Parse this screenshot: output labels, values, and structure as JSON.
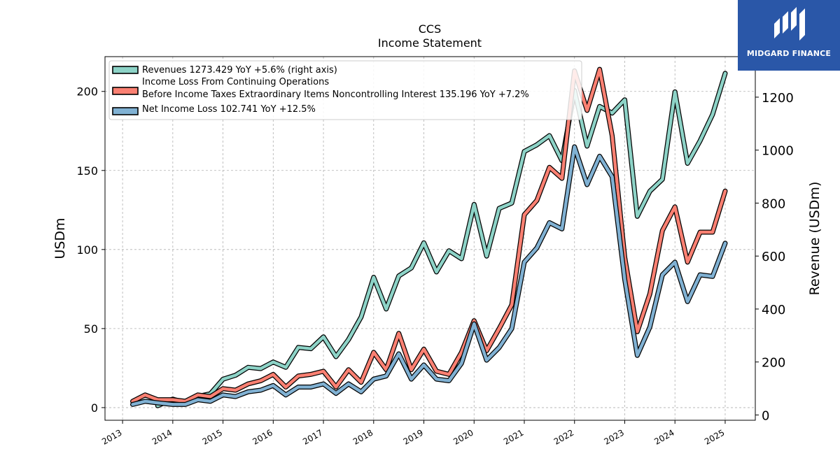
{
  "chart_data": {
    "type": "line",
    "title": "CCS",
    "subtitle": "Income Statement",
    "ylabel": "USDm",
    "ylabel_right": "Revenue (USDm)",
    "ylim": [
      -8,
      222
    ],
    "ylim_right": [
      -20,
      1353
    ],
    "yticks": [
      0,
      50,
      100,
      150,
      200
    ],
    "yticks_right": [
      0,
      200,
      400,
      600,
      800,
      1000,
      1200
    ],
    "xlim": [
      2012.65,
      2025.6
    ],
    "x_tick_labels": [
      "2013",
      "2014",
      "2015",
      "2016",
      "2017",
      "2018",
      "2019",
      "2020",
      "2021",
      "2022",
      "2023",
      "2024",
      "2025"
    ],
    "grid": true,
    "legend_position": "top-left",
    "series": [
      {
        "name": "Revenues  1273.429 YoY +5.6% (right axis)",
        "axis": "right",
        "color": "#8dd3c7",
        "x": [
          2013.7,
          2014.0,
          2014.25,
          2014.5,
          2014.75,
          2015.0,
          2015.25,
          2015.5,
          2015.75,
          2016.0,
          2016.25,
          2016.5,
          2016.75,
          2017.0,
          2017.25,
          2017.5,
          2017.75,
          2018.0,
          2018.25,
          2018.5,
          2018.75,
          2019.0,
          2019.25,
          2019.5,
          2019.75,
          2020.0,
          2020.25,
          2020.5,
          2020.75,
          2021.0,
          2021.25,
          2021.5,
          2021.75,
          2022.0,
          2022.25,
          2022.5,
          2022.75,
          2023.0,
          2023.25,
          2023.5,
          2023.75,
          2024.0,
          2024.25,
          2024.5,
          2024.75,
          2025.0
        ],
        "values": [
          35,
          60,
          45,
          70,
          80,
          135,
          150,
          180,
          175,
          200,
          180,
          255,
          250,
          295,
          220,
          285,
          370,
          520,
          400,
          525,
          555,
          650,
          540,
          620,
          590,
          795,
          600,
          780,
          800,
          995,
          1020,
          1055,
          960,
          1225,
          1015,
          1165,
          1140,
          1190,
          750,
          845,
          890,
          1220,
          950,
          1035,
          1135,
          1290
        ]
      },
      {
        "name": "Income Loss From Continuing Operations\nBefore Income Taxes Extraordinary Items Noncontrolling Interest  135.196 YoY +7.2%",
        "axis": "left",
        "color": "#fb8072",
        "x": [
          2013.2,
          2013.45,
          2013.7,
          2014.0,
          2014.25,
          2014.5,
          2014.75,
          2015.0,
          2015.25,
          2015.5,
          2015.75,
          2016.0,
          2016.25,
          2016.5,
          2016.75,
          2017.0,
          2017.25,
          2017.5,
          2017.75,
          2018.0,
          2018.25,
          2018.5,
          2018.75,
          2019.0,
          2019.25,
          2019.5,
          2019.75,
          2020.0,
          2020.25,
          2020.5,
          2020.75,
          2021.0,
          2021.25,
          2021.5,
          2021.75,
          2022.0,
          2022.25,
          2022.5,
          2022.75,
          2023.0,
          2023.25,
          2023.5,
          2023.75,
          2024.0,
          2024.25,
          2024.5,
          2024.75,
          2025.0
        ],
        "values": [
          4,
          8,
          5,
          5,
          4,
          8,
          7,
          12,
          11,
          15,
          17,
          21,
          13,
          20,
          21,
          23,
          13,
          24,
          16,
          35,
          24,
          47,
          24,
          37,
          23,
          21,
          35,
          55,
          36,
          50,
          65,
          122,
          131,
          152,
          145,
          213,
          188,
          214,
          172,
          95,
          48,
          72,
          112,
          127,
          92,
          111,
          111,
          137
        ]
      },
      {
        "name": "Net Income Loss  102.741 YoY +12.5%",
        "axis": "left",
        "color": "#80b1d3",
        "x": [
          2013.2,
          2013.45,
          2013.7,
          2014.0,
          2014.25,
          2014.5,
          2014.75,
          2015.0,
          2015.25,
          2015.5,
          2015.75,
          2016.0,
          2016.25,
          2016.5,
          2016.75,
          2017.0,
          2017.25,
          2017.5,
          2017.75,
          2018.0,
          2018.25,
          2018.5,
          2018.75,
          2019.0,
          2019.25,
          2019.5,
          2019.75,
          2020.0,
          2020.25,
          2020.5,
          2020.75,
          2021.0,
          2021.25,
          2021.5,
          2021.75,
          2022.0,
          2022.25,
          2022.5,
          2022.75,
          2023.0,
          2023.25,
          2023.5,
          2023.75,
          2024.0,
          2024.25,
          2024.5,
          2024.75,
          2025.0
        ],
        "values": [
          2,
          4,
          3,
          2,
          2,
          5,
          4,
          8,
          7,
          10,
          11,
          14,
          8,
          13,
          13,
          15,
          9,
          15,
          10,
          18,
          20,
          34,
          18,
          27,
          18,
          17,
          28,
          53,
          30,
          38,
          50,
          92,
          101,
          117,
          113,
          165,
          141,
          159,
          146,
          81,
          33,
          51,
          84,
          92,
          67,
          84,
          83,
          104
        ]
      }
    ]
  },
  "logo": {
    "text": "MIDGARD FINANCE"
  }
}
